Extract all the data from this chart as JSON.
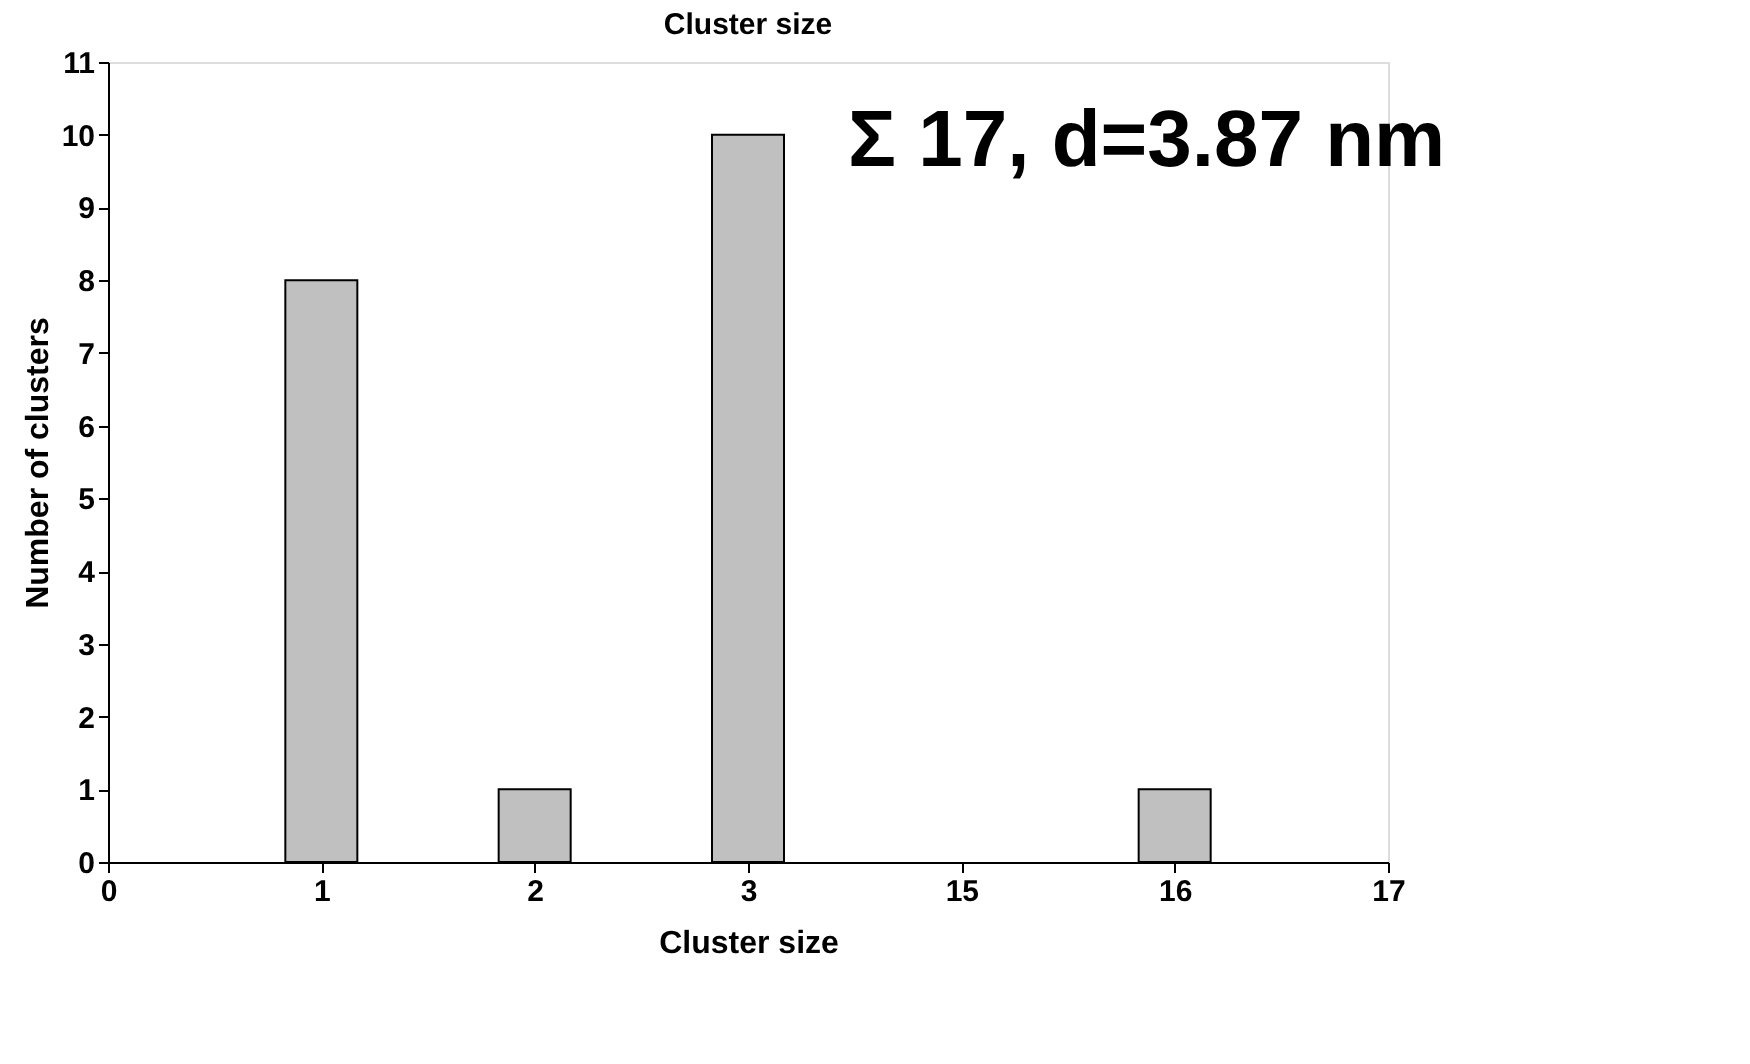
{
  "chart_data": {
    "type": "bar",
    "title": "Cluster size",
    "xlabel": "Cluster size",
    "ylabel": "Number of clusters",
    "categories": [
      "0",
      "1",
      "2",
      "3",
      "15",
      "16",
      "17"
    ],
    "values": [
      null,
      8,
      1,
      10,
      null,
      1,
      null
    ],
    "color": "#c0c0c0",
    "ylim": [
      0,
      11
    ],
    "yticks": [
      0,
      1,
      2,
      3,
      4,
      5,
      6,
      7,
      8,
      9,
      10,
      11
    ],
    "grid": false,
    "annotations": [
      "Σ 17, d=3.87 nm"
    ]
  }
}
